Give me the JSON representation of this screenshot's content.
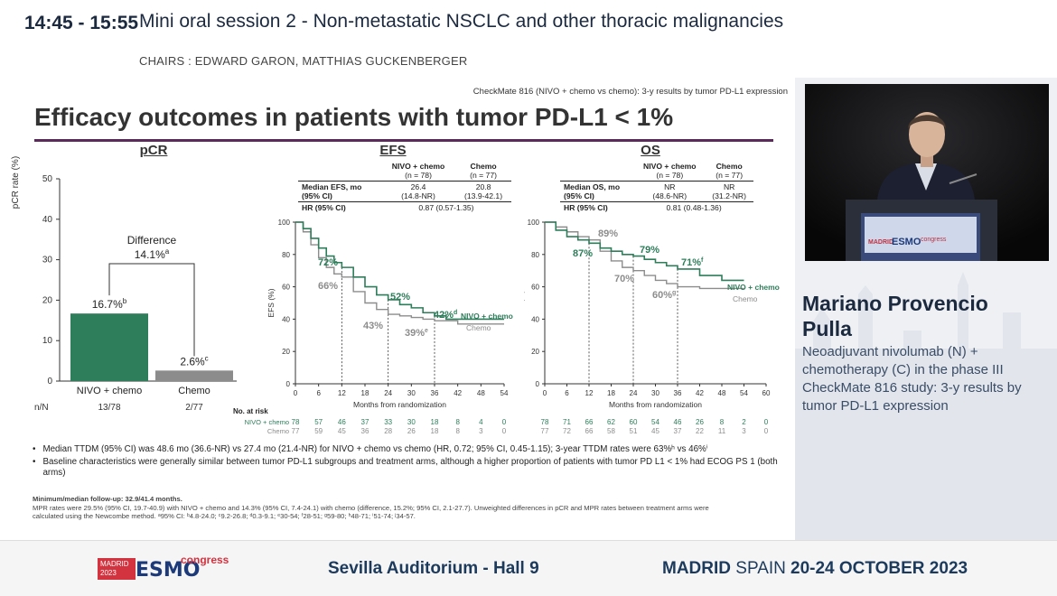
{
  "header": {
    "time": "14:45 - 15:55",
    "title": "Mini oral session 2 - Non-metastatic NSCLC and other thoracic malignancies",
    "chairs": "CHAIRS : EDWARD GARON, MATTHIAS GUCKENBERGER"
  },
  "slide": {
    "tag": "CheckMate 816 (NIVO + chemo vs chemo): 3-y results by tumor PD-L1 expression",
    "title": "Efficacy outcomes in patients with tumor PD-L1 < 1%",
    "pcr": {
      "heading": "pCR",
      "ylabel": "pCR rate (%)",
      "yticks": [
        "0",
        "10",
        "20",
        "30",
        "40",
        "50"
      ],
      "bars": [
        {
          "label": "NIVO + chemo",
          "value": 16.7,
          "value_text": "16.7%",
          "sup": "b",
          "nn": "13/78",
          "color": "#2e7d5b"
        },
        {
          "label": "Chemo",
          "value": 2.6,
          "value_text": "2.6%",
          "sup": "c",
          "nn": "2/77",
          "color": "#8c8c8c"
        }
      ],
      "difference_label": "Difference",
      "difference_value": "14.1%",
      "difference_sup": "a",
      "nn_label": "n/N"
    },
    "efs": {
      "heading": "EFS",
      "table": {
        "col1": "NIVO + chemo",
        "col1b": "(n = 78)",
        "col2": "Chemo",
        "col2b": "(n = 77)",
        "row1_label": "Median EFS, mo",
        "row1_label_b": "(95% CI)",
        "row1_v1": "26.4",
        "row1_v1b": "(14.8-NR)",
        "row1_v2": "20.8",
        "row1_v2b": "(13.9-42.1)",
        "row2_label": "HR (95% CI)",
        "row2_value": "0.87 (0.57-1.35)"
      },
      "ylabel": "EFS (%)",
      "xlabel": "Months from randomization",
      "yticks": [
        "0",
        "20",
        "40",
        "60",
        "80",
        "100"
      ],
      "xticks": [
        "0",
        "6",
        "12",
        "18",
        "24",
        "30",
        "36",
        "42",
        "48",
        "54"
      ],
      "annotations": [
        {
          "text": "72%",
          "color": "#2e7d5b"
        },
        {
          "text": "66%",
          "color": "#8c8c8c"
        },
        {
          "text": "52%",
          "color": "#2e7d5b"
        },
        {
          "text": "43%",
          "color": "#8c8c8c"
        },
        {
          "text": "42%",
          "sup": "d",
          "color": "#2e7d5b"
        },
        {
          "text": "39%",
          "sup": "e",
          "color": "#8c8c8c"
        }
      ],
      "series_label_nivo": "NIVO + chemo",
      "series_label_chemo": "Chemo",
      "at_risk_label": "No. at risk",
      "at_risk_nivo": [
        "78",
        "57",
        "46",
        "37",
        "33",
        "30",
        "18",
        "8",
        "4",
        "0"
      ],
      "at_risk_chemo": [
        "77",
        "59",
        "45",
        "36",
        "28",
        "26",
        "18",
        "8",
        "3",
        "0"
      ]
    },
    "os": {
      "heading": "OS",
      "table": {
        "col1": "NIVO + chemo",
        "col1b": "(n = 78)",
        "col2": "Chemo",
        "col2b": "(n = 77)",
        "row1_label": "Median OS, mo",
        "row1_label_b": "(95% CI)",
        "row1_v1": "NR",
        "row1_v1b": "(48.6-NR)",
        "row1_v2": "NR",
        "row1_v2b": "(31.2-NR)",
        "row2_label": "HR (95% CI)",
        "row2_value": "0.81 (0.48-1.36)"
      },
      "ylabel": "OS (%)",
      "xlabel": "Months from randomization",
      "yticks": [
        "0",
        "20",
        "40",
        "60",
        "80",
        "100"
      ],
      "xticks": [
        "0",
        "6",
        "12",
        "18",
        "24",
        "30",
        "36",
        "42",
        "48",
        "54",
        "60"
      ],
      "annotations": [
        {
          "text": "89%",
          "color": "#8c8c8c"
        },
        {
          "text": "87%",
          "color": "#2e7d5b"
        },
        {
          "text": "79%",
          "color": "#2e7d5b"
        },
        {
          "text": "70%",
          "color": "#8c8c8c"
        },
        {
          "text": "71%",
          "sup": "f",
          "color": "#2e7d5b"
        },
        {
          "text": "60%",
          "sup": "g",
          "color": "#8c8c8c"
        }
      ],
      "series_label_nivo": "NIVO + chemo",
      "series_label_chemo": "Chemo",
      "at_risk_nivo": [
        "78",
        "71",
        "66",
        "62",
        "60",
        "54",
        "46",
        "26",
        "8",
        "2",
        "0"
      ],
      "at_risk_chemo": [
        "77",
        "72",
        "66",
        "58",
        "51",
        "45",
        "37",
        "22",
        "11",
        "3",
        "0"
      ]
    },
    "bullets": [
      "Median TTDM (95% CI) was 48.6 mo (36.6-NR) vs 27.4 mo (21.4-NR) for NIVO + chemo vs chemo (HR, 0.72; 95% CI, 0.45-1.15); 3-year TTDM rates were 63%ʰ vs 46%ⁱ",
      "Baseline characteristics were generally similar between tumor PD-L1 subgroups and treatment arms, although a higher proportion of patients with tumor PD L1 < 1% had ECOG PS 1 (both arms)"
    ],
    "footnote_1": "Minimum/median follow-up: 32.9/41.4 months.",
    "footnote_2": "MPR rates were 29.5% (95% CI, 19.7-40.9) with NIVO + chemo and 14.3% (95% CI, 7.4-24.1) with chemo (difference, 15.2%; 95% CI, 2.1-27.7). Unweighted differences in pCR and MPR rates between treatment arms were",
    "footnote_3": "calculated using the Newcombe method. ᵃ95% CI: ᵇ4.8-24.0; ᶜ9.2-26.8; ᵈ0.3-9.1; ᵉ30-54; ᶠ28-51; ᵍ59-80; ʰ48-71; ⁱ51-74; ʲ34-57."
  },
  "speaker": {
    "name_line1": "Mariano Provencio",
    "name_line2": "Pulla",
    "talk_title": "Neoadjuvant nivolumab (N) + chemotherapy (C) in the phase III CheckMate 816 study: 3-y results by tumor PD-L1 expression"
  },
  "footer": {
    "logo_city": "MADRID",
    "logo_year": "2023",
    "logo_brand": "ESMO",
    "logo_word": "congress",
    "venue": "Sevilla Auditorium - Hall 9",
    "city_bold": "MADRID",
    "city_rest": "SPAIN",
    "dates": "20-24 OCTOBER 2023"
  },
  "podium_logo": {
    "city": "MADRID",
    "brand": "ESMO",
    "word": "congress"
  },
  "colors": {
    "nivo": "#2e7d5b",
    "chemo": "#8c8c8c",
    "title_rule": "#5a2a5a",
    "header_text": "#1c2a40"
  }
}
